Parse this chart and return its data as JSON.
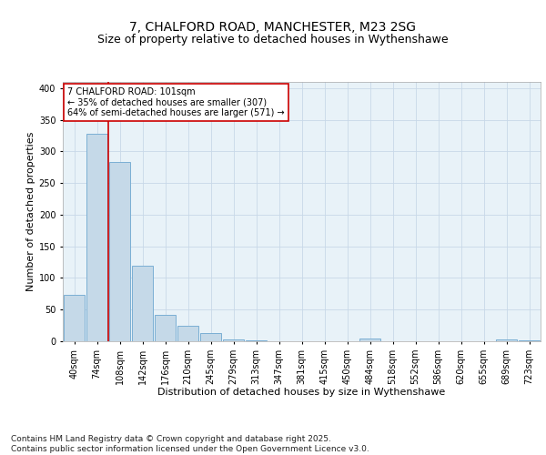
{
  "title_line1": "7, CHALFORD ROAD, MANCHESTER, M23 2SG",
  "title_line2": "Size of property relative to detached houses in Wythenshawe",
  "xlabel": "Distribution of detached houses by size in Wythenshawe",
  "ylabel": "Number of detached properties",
  "bar_labels": [
    "40sqm",
    "74sqm",
    "108sqm",
    "142sqm",
    "176sqm",
    "210sqm",
    "245sqm",
    "279sqm",
    "313sqm",
    "347sqm",
    "381sqm",
    "415sqm",
    "450sqm",
    "484sqm",
    "518sqm",
    "552sqm",
    "586sqm",
    "620sqm",
    "655sqm",
    "689sqm",
    "723sqm"
  ],
  "bar_values": [
    74,
    328,
    283,
    120,
    42,
    25,
    13,
    3,
    1,
    0,
    0,
    0,
    0,
    4,
    0,
    0,
    0,
    0,
    0,
    3,
    2
  ],
  "bar_color": "#c5d9e8",
  "bar_edge_color": "#7bafd4",
  "grid_color": "#c8d8e8",
  "background_color": "#e8f2f8",
  "vline_color": "#cc0000",
  "annotation_text": "7 CHALFORD ROAD: 101sqm\n← 35% of detached houses are smaller (307)\n64% of semi-detached houses are larger (571) →",
  "annotation_box_color": "#cc0000",
  "ylim": [
    0,
    410
  ],
  "yticks": [
    0,
    50,
    100,
    150,
    200,
    250,
    300,
    350,
    400
  ],
  "footer_text": "Contains HM Land Registry data © Crown copyright and database right 2025.\nContains public sector information licensed under the Open Government Licence v3.0.",
  "title_fontsize": 10,
  "subtitle_fontsize": 9,
  "axis_label_fontsize": 8,
  "tick_fontsize": 7,
  "annotation_fontsize": 7,
  "footer_fontsize": 6.5
}
